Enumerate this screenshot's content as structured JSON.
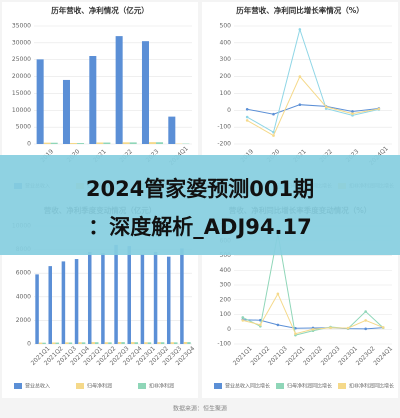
{
  "chart_data": [
    {
      "type": "bar",
      "title": "历年营收、净利情况（亿元）",
      "categories": [
        "2019",
        "2020",
        "2021",
        "2022",
        "2023",
        "2024Q1"
      ],
      "series": [
        {
          "name": "营业总收入",
          "color": "#5b8fd6",
          "values": [
            25110,
            19000,
            26100,
            32000,
            30500,
            8121
          ]
        },
        {
          "name": "归母净利润",
          "color": "#f5d98a",
          "values": [
            400,
            300,
            450,
            500,
            550,
            120
          ]
        },
        {
          "name": "扣非净利润",
          "color": "#8fd6b8",
          "values": [
            380,
            280,
            430,
            480,
            520,
            110
          ]
        }
      ],
      "ylim": [
        0,
        35000
      ],
      "yticks": [
        0,
        5000,
        10000,
        15000,
        20000,
        25000,
        30000,
        35000
      ]
    },
    {
      "type": "line",
      "title": "历年营收、净利同比增长率情况（%）",
      "categories": [
        "2019",
        "2020",
        "2021",
        "2022",
        "2023",
        "2024Q1"
      ],
      "series": [
        {
          "name": "营业总收入同比增长",
          "color": "#5b8fd6",
          "values": [
            5.97,
            -23.16,
            33.19,
            23.0,
            -7.04,
            10.86
          ]
        },
        {
          "name": "归母净利润同比增长",
          "color": "#8fd6e6",
          "values": [
            -40,
            -130,
            480,
            10,
            -30,
            5
          ]
        },
        {
          "name": "扣非净利润同比增长",
          "color": "#f5d98a",
          "values": [
            -60,
            -150,
            200,
            20,
            -20,
            8
          ]
        }
      ],
      "ylim": [
        -200,
        500
      ],
      "yticks": [
        -200,
        -100,
        0,
        100,
        200,
        300,
        400,
        500
      ]
    },
    {
      "type": "bar",
      "title": "营收、净利季度变动情况（亿元）",
      "categories": [
        "2021Q1",
        "2021Q2",
        "2021Q3",
        "2021Q4",
        "2022Q1",
        "2022Q2",
        "2022Q3",
        "2022Q4",
        "2023Q1",
        "2023Q2",
        "2023Q3",
        "2023Q4"
      ],
      "series": [
        {
          "name": "营业总收入",
          "color": "#5b8fd6",
          "values": [
            5900,
            6600,
            7000,
            7200,
            7800,
            7700,
            8400,
            8300,
            7600,
            7800,
            7400,
            8100
          ]
        },
        {
          "name": "归母净利润",
          "color": "#f5d98a",
          "values": [
            120,
            130,
            140,
            150,
            160,
            150,
            170,
            160,
            150,
            160,
            150,
            170
          ]
        },
        {
          "name": "扣非净利润",
          "color": "#8fd6b8",
          "values": [
            110,
            120,
            130,
            140,
            150,
            140,
            160,
            150,
            140,
            150,
            140,
            160
          ]
        }
      ],
      "ylim": [
        0,
        10000
      ],
      "yticks": [
        0,
        2000,
        4000,
        6000,
        8000,
        10000
      ]
    },
    {
      "type": "line",
      "title": "营收、净利同比增长率季度变动情况（%）",
      "categories": [
        "2021Q1",
        "2021Q2",
        "2021Q3",
        "2022Q1",
        "2022Q2",
        "2022Q3",
        "2023Q1",
        "2023Q2",
        "2024Q1"
      ],
      "series": [
        {
          "name": "营业总收入同比增长",
          "color": "#5b8fd6",
          "values": [
            64.58,
            61.21,
            29.57,
            6.78,
            8.82,
            10.21,
            4.28,
            2.8,
            10.88
          ]
        },
        {
          "name": "归母净利润同比增长",
          "color": "#8fd6b8",
          "values": [
            80,
            20,
            650,
            -40,
            -10,
            15,
            5,
            120,
            10
          ]
        },
        {
          "name": "扣非净利润同比增长",
          "color": "#f5d98a",
          "values": [
            60,
            30,
            240,
            -30,
            0,
            10,
            8,
            60,
            12
          ]
        }
      ],
      "ylim": [
        -100,
        700
      ],
      "yticks": [
        -100,
        0,
        100,
        200,
        300,
        400,
        500,
        600,
        700
      ]
    }
  ],
  "banner": {
    "line1": "2024管家婆预测001期",
    "line2": "：深度解析_ADJ94.17"
  },
  "source": "数据来源：恒生聚源"
}
